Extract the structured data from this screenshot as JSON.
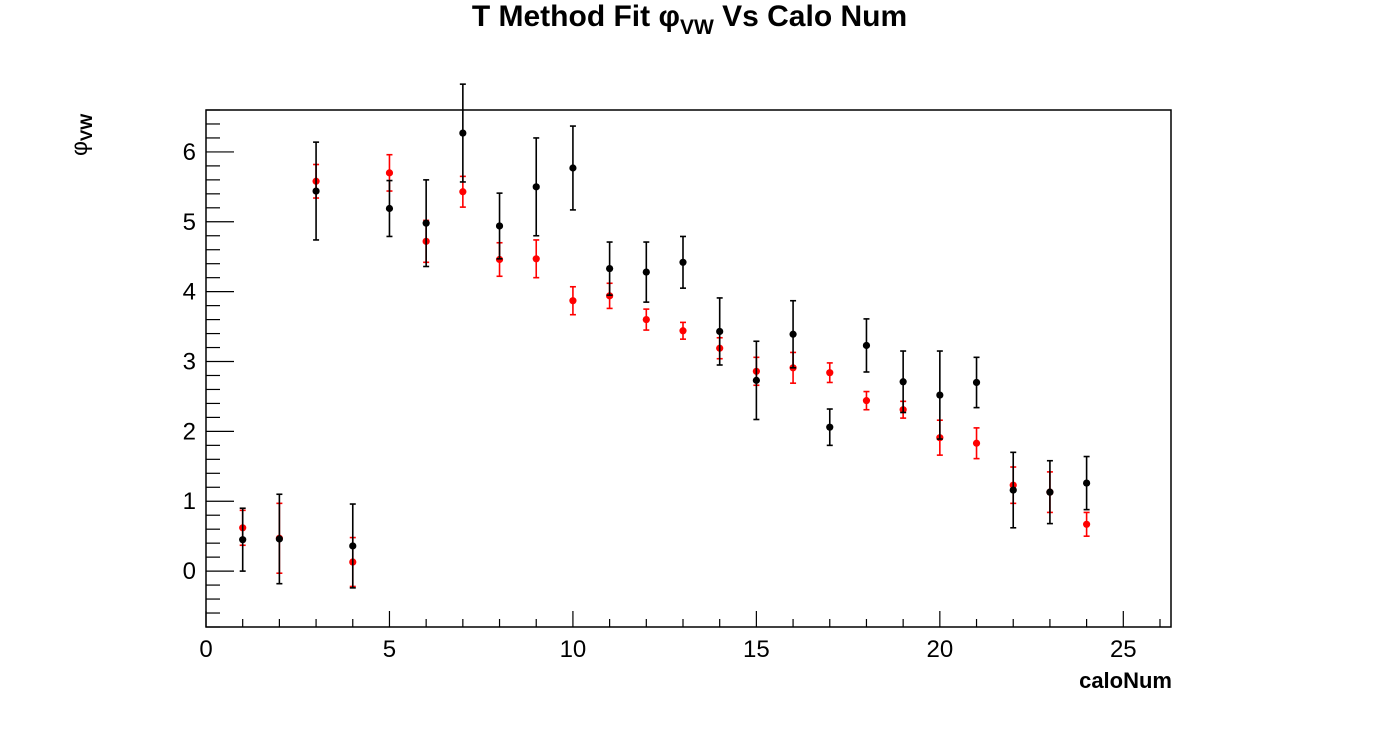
{
  "chart_data": {
    "type": "scatter",
    "title": {
      "prefix": "T Method Fit  ",
      "symbol": "φ",
      "subscript": "VW",
      "suffix": " Vs Calo Num"
    },
    "xlabel": "caloNum",
    "ylabel": {
      "symbol": "φ",
      "subscript": "VW"
    },
    "xlim": [
      0,
      26.3
    ],
    "ylim": [
      -0.8,
      6.6
    ],
    "xticks": [
      0,
      5,
      10,
      15,
      20,
      25
    ],
    "yticks": [
      0,
      1,
      2,
      3,
      4,
      5,
      6
    ],
    "grid": false,
    "series": [
      {
        "color": "#ff0000",
        "points": [
          {
            "x": 1,
            "y": 0.62,
            "err": 0.25
          },
          {
            "x": 2,
            "y": 0.47,
            "err": 0.5
          },
          {
            "x": 3,
            "y": 5.58,
            "err": 0.24
          },
          {
            "x": 4,
            "y": 0.13,
            "err": 0.35
          },
          {
            "x": 5,
            "y": 5.7,
            "err": 0.26
          },
          {
            "x": 6,
            "y": 4.72,
            "err": 0.3
          },
          {
            "x": 7,
            "y": 5.43,
            "err": 0.22
          },
          {
            "x": 8,
            "y": 4.46,
            "err": 0.24
          },
          {
            "x": 9,
            "y": 4.47,
            "err": 0.27
          },
          {
            "x": 10,
            "y": 3.87,
            "err": 0.2
          },
          {
            "x": 11,
            "y": 3.94,
            "err": 0.18
          },
          {
            "x": 12,
            "y": 3.6,
            "err": 0.15
          },
          {
            "x": 13,
            "y": 3.44,
            "err": 0.12
          },
          {
            "x": 14,
            "y": 3.19,
            "err": 0.15
          },
          {
            "x": 15,
            "y": 2.86,
            "err": 0.2
          },
          {
            "x": 16,
            "y": 2.91,
            "err": 0.22
          },
          {
            "x": 17,
            "y": 2.84,
            "err": 0.14
          },
          {
            "x": 18,
            "y": 2.44,
            "err": 0.13
          },
          {
            "x": 19,
            "y": 2.31,
            "err": 0.12
          },
          {
            "x": 20,
            "y": 1.91,
            "err": 0.25
          },
          {
            "x": 21,
            "y": 1.83,
            "err": 0.22
          },
          {
            "x": 22,
            "y": 1.23,
            "err": 0.26
          },
          {
            "x": 23,
            "y": 1.13,
            "err": 0.29
          },
          {
            "x": 24,
            "y": 0.67,
            "err": 0.17
          }
        ]
      },
      {
        "color": "#000000",
        "points": [
          {
            "x": 1,
            "y": 0.45,
            "err": 0.45
          },
          {
            "x": 2,
            "y": 0.46,
            "err": 0.64
          },
          {
            "x": 3,
            "y": 5.44,
            "err": 0.7
          },
          {
            "x": 4,
            "y": 0.36,
            "err": 0.6
          },
          {
            "x": 5,
            "y": 5.19,
            "err": 0.4
          },
          {
            "x": 6,
            "y": 4.98,
            "err": 0.62
          },
          {
            "x": 7,
            "y": 6.27,
            "err": 0.7
          },
          {
            "x": 8,
            "y": 4.94,
            "err": 0.47
          },
          {
            "x": 9,
            "y": 5.5,
            "err": 0.7
          },
          {
            "x": 10,
            "y": 5.77,
            "err": 0.6
          },
          {
            "x": 11,
            "y": 4.33,
            "err": 0.38
          },
          {
            "x": 12,
            "y": 4.28,
            "err": 0.43
          },
          {
            "x": 13,
            "y": 4.42,
            "err": 0.37
          },
          {
            "x": 14,
            "y": 3.43,
            "err": 0.48
          },
          {
            "x": 15,
            "y": 2.73,
            "err": 0.56
          },
          {
            "x": 16,
            "y": 3.39,
            "err": 0.48
          },
          {
            "x": 17,
            "y": 2.06,
            "err": 0.26
          },
          {
            "x": 18,
            "y": 3.23,
            "err": 0.38
          },
          {
            "x": 19,
            "y": 2.71,
            "err": 0.44
          },
          {
            "x": 20,
            "y": 2.52,
            "err": 0.63
          },
          {
            "x": 21,
            "y": 2.7,
            "err": 0.36
          },
          {
            "x": 22,
            "y": 1.16,
            "err": 0.54
          },
          {
            "x": 23,
            "y": 1.13,
            "err": 0.45
          },
          {
            "x": 24,
            "y": 1.26,
            "err": 0.38
          }
        ]
      }
    ]
  }
}
